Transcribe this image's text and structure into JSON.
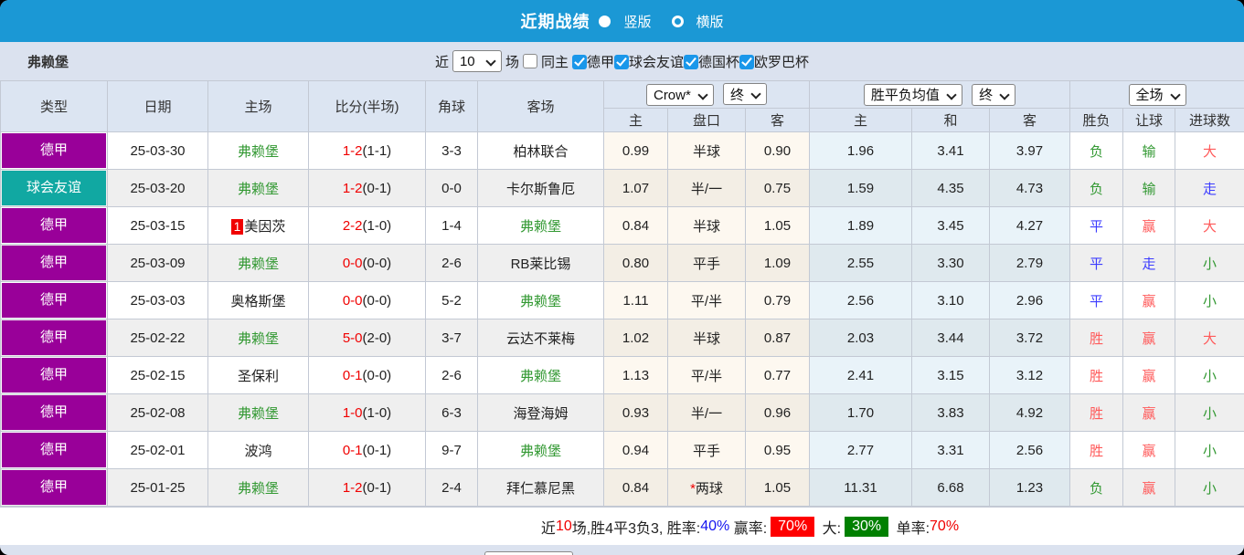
{
  "header": {
    "title": "近期战绩",
    "radio_vertical_label": "竖版",
    "radio_horizontal_label": "横版",
    "vertical_selected": true
  },
  "filter": {
    "team": "弗赖堡",
    "near_label": "近",
    "near_value": "10",
    "games_label": "场",
    "same_home_label": "同主",
    "same_home_checked": false,
    "leagues": [
      {
        "label": "德甲",
        "checked": true
      },
      {
        "label": "球会友谊",
        "checked": true
      },
      {
        "label": "德国杯",
        "checked": true
      },
      {
        "label": "欧罗巴杯",
        "checked": true
      }
    ]
  },
  "table": {
    "left_headers": [
      "类型",
      "日期",
      "主场",
      "比分(半场)",
      "角球",
      "客场"
    ],
    "odds_source_select": "Crow*",
    "odds_time_select": "终",
    "avg_source_select": "胜平负均值",
    "avg_time_select": "终",
    "scope_select": "全场",
    "odds_subheaders": [
      "主",
      "盘口",
      "客"
    ],
    "avg_subheaders": [
      "主",
      "和",
      "客"
    ],
    "result_subheaders": [
      "胜负",
      "让球",
      "进球数"
    ],
    "rows": [
      {
        "type": "德甲",
        "type_class": "bg-purple",
        "date": "25-03-30",
        "home": "弗赖堡",
        "home_main": true,
        "home_badge": "",
        "score": "1-2",
        "half": "(1-1)",
        "corner": "3-3",
        "away": "柏林联合",
        "away_main": false,
        "odds": [
          "0.99",
          "半球",
          "0.90"
        ],
        "avg": [
          "1.96",
          "3.41",
          "3.97"
        ],
        "result": "负",
        "result_color": "t-green",
        "spread": "输",
        "spread_color": "t-green",
        "goals": "大",
        "goals_color": "t-red"
      },
      {
        "type": "球会友谊",
        "type_class": "bg-teal",
        "date": "25-03-20",
        "home": "弗赖堡",
        "home_main": true,
        "home_badge": "",
        "score": "1-2",
        "half": "(0-1)",
        "corner": "0-0",
        "away": "卡尔斯鲁厄",
        "away_main": false,
        "odds": [
          "1.07",
          "半/一",
          "0.75"
        ],
        "avg": [
          "1.59",
          "4.35",
          "4.73"
        ],
        "result": "负",
        "result_color": "t-green",
        "spread": "输",
        "spread_color": "t-green",
        "goals": "走",
        "goals_color": "t-blue"
      },
      {
        "type": "德甲",
        "type_class": "bg-purple",
        "date": "25-03-15",
        "home": "美因茨",
        "home_main": false,
        "home_badge": "1",
        "score": "2-2",
        "half": "(1-0)",
        "corner": "1-4",
        "away": "弗赖堡",
        "away_main": true,
        "odds": [
          "0.84",
          "半球",
          "1.05"
        ],
        "avg": [
          "1.89",
          "3.45",
          "4.27"
        ],
        "result": "平",
        "result_color": "t-blue",
        "spread": "赢",
        "spread_color": "t-red",
        "goals": "大",
        "goals_color": "t-red"
      },
      {
        "type": "德甲",
        "type_class": "bg-purple",
        "date": "25-03-09",
        "home": "弗赖堡",
        "home_main": true,
        "home_badge": "",
        "score": "0-0",
        "half": "(0-0)",
        "corner": "2-6",
        "away": "RB莱比锡",
        "away_main": false,
        "odds": [
          "0.80",
          "平手",
          "1.09"
        ],
        "avg": [
          "2.55",
          "3.30",
          "2.79"
        ],
        "result": "平",
        "result_color": "t-blue",
        "spread": "走",
        "spread_color": "t-blue",
        "goals": "小",
        "goals_color": "t-green"
      },
      {
        "type": "德甲",
        "type_class": "bg-purple",
        "date": "25-03-03",
        "home": "奥格斯堡",
        "home_main": false,
        "home_badge": "",
        "score": "0-0",
        "half": "(0-0)",
        "corner": "5-2",
        "away": "弗赖堡",
        "away_main": true,
        "odds": [
          "1.11",
          "平/半",
          "0.79"
        ],
        "avg": [
          "2.56",
          "3.10",
          "2.96"
        ],
        "result": "平",
        "result_color": "t-blue",
        "spread": "赢",
        "spread_color": "t-red",
        "goals": "小",
        "goals_color": "t-green"
      },
      {
        "type": "德甲",
        "type_class": "bg-purple",
        "date": "25-02-22",
        "home": "弗赖堡",
        "home_main": true,
        "home_badge": "",
        "score": "5-0",
        "half": "(2-0)",
        "corner": "3-7",
        "away": "云达不莱梅",
        "away_main": false,
        "odds": [
          "1.02",
          "半球",
          "0.87"
        ],
        "avg": [
          "2.03",
          "3.44",
          "3.72"
        ],
        "result": "胜",
        "result_color": "t-red",
        "spread": "赢",
        "spread_color": "t-red",
        "goals": "大",
        "goals_color": "t-red"
      },
      {
        "type": "德甲",
        "type_class": "bg-purple",
        "date": "25-02-15",
        "home": "圣保利",
        "home_main": false,
        "home_badge": "",
        "score": "0-1",
        "half": "(0-0)",
        "corner": "2-6",
        "away": "弗赖堡",
        "away_main": true,
        "odds": [
          "1.13",
          "平/半",
          "0.77"
        ],
        "avg": [
          "2.41",
          "3.15",
          "3.12"
        ],
        "result": "胜",
        "result_color": "t-red",
        "spread": "赢",
        "spread_color": "t-red",
        "goals": "小",
        "goals_color": "t-green"
      },
      {
        "type": "德甲",
        "type_class": "bg-purple",
        "date": "25-02-08",
        "home": "弗赖堡",
        "home_main": true,
        "home_badge": "",
        "score": "1-0",
        "half": "(1-0)",
        "corner": "6-3",
        "away": "海登海姆",
        "away_main": false,
        "odds": [
          "0.93",
          "半/一",
          "0.96"
        ],
        "avg": [
          "1.70",
          "3.83",
          "4.92"
        ],
        "result": "胜",
        "result_color": "t-red",
        "spread": "赢",
        "spread_color": "t-red",
        "goals": "小",
        "goals_color": "t-green"
      },
      {
        "type": "德甲",
        "type_class": "bg-purple",
        "date": "25-02-01",
        "home": "波鸿",
        "home_main": false,
        "home_badge": "",
        "score": "0-1",
        "half": "(0-1)",
        "corner": "9-7",
        "away": "弗赖堡",
        "away_main": true,
        "odds": [
          "0.94",
          "平手",
          "0.95"
        ],
        "avg": [
          "2.77",
          "3.31",
          "2.56"
        ],
        "result": "胜",
        "result_color": "t-red",
        "spread": "赢",
        "spread_color": "t-red",
        "goals": "小",
        "goals_color": "t-green"
      },
      {
        "type": "德甲",
        "type_class": "bg-purple",
        "date": "25-01-25",
        "home": "弗赖堡",
        "home_main": true,
        "home_badge": "",
        "score": "1-2",
        "half": "(0-1)",
        "corner": "2-4",
        "away": "拜仁慕尼黑",
        "away_main": false,
        "odds": [
          "0.84",
          "*两球",
          "1.05"
        ],
        "avg": [
          "11.31",
          "6.68",
          "1.23"
        ],
        "result": "负",
        "result_color": "t-green",
        "spread": "赢",
        "spread_color": "t-red",
        "goals": "小",
        "goals_color": "t-green"
      }
    ]
  },
  "footer": {
    "segments": [
      {
        "text": "近",
        "cls": ""
      },
      {
        "text": "10",
        "cls": "f-red"
      },
      {
        "text": "场,胜4平3负3, 胜率:",
        "cls": ""
      },
      {
        "text": "40%",
        "cls": "f-blue"
      },
      {
        "text": " 赢率:",
        "cls": ""
      },
      {
        "text": "70%",
        "cls": "blk blk-red"
      },
      {
        "text": " 大:",
        "cls": ""
      },
      {
        "text": "30%",
        "cls": "blk blk-green"
      },
      {
        "text": " 单率:",
        "cls": ""
      },
      {
        "text": "70%",
        "cls": "f-red"
      }
    ]
  },
  "colors": {
    "topbar_blue": "#1b98d5",
    "league_purple": "#990099",
    "friendly_teal": "#11a8a2",
    "team_green": "#339933",
    "score_red": "#f00000",
    "win_red": "#ff5a5a",
    "draw_blue": "#3c3cff",
    "rate_blue": "#1414f0",
    "block_red": "#fe0000",
    "block_green": "#008000",
    "checkbox_blue": "#1a97ea"
  }
}
